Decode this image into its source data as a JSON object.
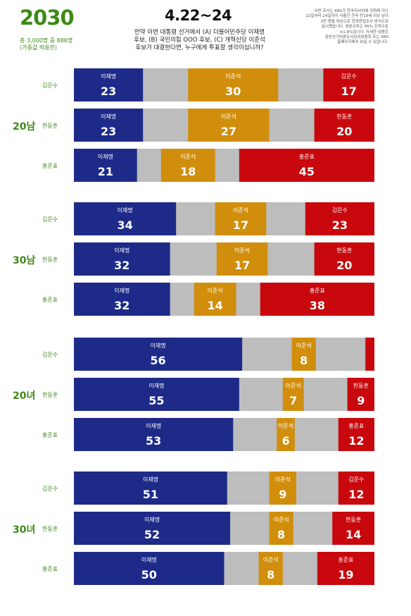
{
  "header": {
    "title": "2030",
    "sub1": "총 3,000명 중 886명",
    "sub2": "(가중값 적용전)",
    "date": "4.22~24",
    "question": [
      "만약 이번 대통령 선거에서 (A) 더불어민주당 이재명",
      "후보, (B) 국민의힘 OOO 후보, (C) 개혁신당 이준석",
      "후보가 대결한다면, 누구에게 투표할 생각이십니까?"
    ],
    "method": [
      "이번 조사는 KBS가 한국리서치에 의뢰해 지난",
      "22일부터 24일까지 사흘간 전국 만18세 이상 남녀",
      "3천 명을 대상으로 전화면접조사 방식으로",
      "실시했습니다. 표본오차는 95% 신뢰수준",
      "±1.8%입니다. 자세한 내용은",
      "중앙선거여론조사심의위원회 또는 KBS",
      "홈페이지에서 보실 수 있습니다."
    ]
  },
  "colors": {
    "lee_jaemyung": "#1d2a88",
    "lee_junseok": "#d18e0c",
    "ppp": "#c8080d",
    "other": "#bdbdbd"
  },
  "chart_data": {
    "type": "bar",
    "stacked": true,
    "groups": [
      {
        "label": "20남",
        "rows": [
          {
            "opponent": "김문수",
            "segments": [
              {
                "name": "이재명",
                "value": 23,
                "party": "lee_jaemyung"
              },
              {
                "name": "이준석",
                "value": 30,
                "party": "lee_junseok"
              },
              {
                "name": "김문수",
                "value": 17,
                "party": "ppp"
              }
            ]
          },
          {
            "opponent": "한동훈",
            "segments": [
              {
                "name": "이재명",
                "value": 23,
                "party": "lee_jaemyung"
              },
              {
                "name": "이준석",
                "value": 27,
                "party": "lee_junseok"
              },
              {
                "name": "한동훈",
                "value": 20,
                "party": "ppp"
              }
            ]
          },
          {
            "opponent": "홍준표",
            "segments": [
              {
                "name": "이재명",
                "value": 21,
                "party": "lee_jaemyung"
              },
              {
                "name": "이준석",
                "value": 18,
                "party": "lee_junseok"
              },
              {
                "name": "홍준표",
                "value": 45,
                "party": "ppp"
              }
            ]
          }
        ]
      },
      {
        "label": "30남",
        "rows": [
          {
            "opponent": "김문수",
            "segments": [
              {
                "name": "이재명",
                "value": 34,
                "party": "lee_jaemyung"
              },
              {
                "name": "이준석",
                "value": 17,
                "party": "lee_junseok"
              },
              {
                "name": "김문수",
                "value": 23,
                "party": "ppp"
              }
            ]
          },
          {
            "opponent": "한동훈",
            "segments": [
              {
                "name": "이재명",
                "value": 32,
                "party": "lee_jaemyung"
              },
              {
                "name": "이준석",
                "value": 17,
                "party": "lee_junseok"
              },
              {
                "name": "한동훈",
                "value": 20,
                "party": "ppp"
              }
            ]
          },
          {
            "opponent": "홍준표",
            "segments": [
              {
                "name": "이재명",
                "value": 32,
                "party": "lee_jaemyung"
              },
              {
                "name": "이준석",
                "value": 14,
                "party": "lee_junseok"
              },
              {
                "name": "홍준표",
                "value": 38,
                "party": "ppp"
              }
            ]
          }
        ]
      },
      {
        "label": "20녀",
        "rows": [
          {
            "opponent": "김문수",
            "segments": [
              {
                "name": "이재명",
                "value": 56,
                "party": "lee_jaemyung"
              },
              {
                "name": "이준석",
                "value": 8,
                "party": "lee_junseok"
              },
              {
                "name": "",
                "value": 3,
                "party": "ppp"
              }
            ]
          },
          {
            "opponent": "한동훈",
            "segments": [
              {
                "name": "이재명",
                "value": 55,
                "party": "lee_jaemyung"
              },
              {
                "name": "이준석",
                "value": 7,
                "party": "lee_junseok"
              },
              {
                "name": "한동훈",
                "value": 9,
                "party": "ppp"
              }
            ]
          },
          {
            "opponent": "홍준표",
            "segments": [
              {
                "name": "이재명",
                "value": 53,
                "party": "lee_jaemyung"
              },
              {
                "name": "이준석",
                "value": 6,
                "party": "lee_junseok"
              },
              {
                "name": "홍준표",
                "value": 12,
                "party": "ppp"
              }
            ]
          }
        ]
      },
      {
        "label": "30녀",
        "rows": [
          {
            "opponent": "김문수",
            "segments": [
              {
                "name": "이재명",
                "value": 51,
                "party": "lee_jaemyung"
              },
              {
                "name": "이준석",
                "value": 9,
                "party": "lee_junseok"
              },
              {
                "name": "김문수",
                "value": 12,
                "party": "ppp"
              }
            ]
          },
          {
            "opponent": "한동훈",
            "segments": [
              {
                "name": "이재명",
                "value": 52,
                "party": "lee_jaemyung"
              },
              {
                "name": "이준석",
                "value": 8,
                "party": "lee_junseok"
              },
              {
                "name": "한동훈",
                "value": 14,
                "party": "ppp"
              }
            ]
          },
          {
            "opponent": "홍준표",
            "segments": [
              {
                "name": "이재명",
                "value": 50,
                "party": "lee_jaemyung"
              },
              {
                "name": "이준석",
                "value": 8,
                "party": "lee_junseok"
              },
              {
                "name": "홍준표",
                "value": 19,
                "party": "ppp"
              }
            ]
          }
        ]
      }
    ]
  }
}
